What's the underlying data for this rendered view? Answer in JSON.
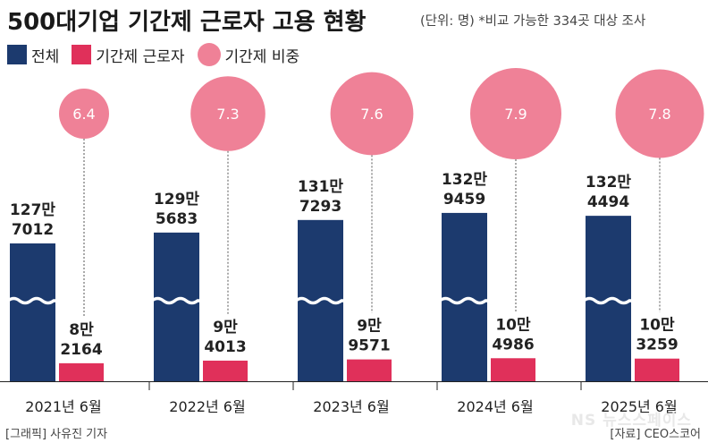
{
  "header": {
    "title": "500대기업 기간제 근로자 고용 현황",
    "note": "(단위: 명) *비교 가능한 334곳 대상 조사"
  },
  "legend": {
    "total": "전체",
    "contract": "기간제 근로자",
    "ratio": "기간제 비중"
  },
  "colors": {
    "total": "#1c3a6e",
    "contract": "#e0305a",
    "ratio": "#ef8197"
  },
  "chart_data": {
    "type": "bar",
    "axis_break": true,
    "categories": [
      "2021년 6월",
      "2022년 6월",
      "2023년 6월",
      "2024년 6월",
      "2025년 6월"
    ],
    "series": [
      {
        "name": "전체",
        "values": [
          1277012,
          1295683,
          1317293,
          1329459,
          1324494
        ],
        "labels": [
          [
            "127만",
            "7012"
          ],
          [
            "129만",
            "5683"
          ],
          [
            "131만",
            "7293"
          ],
          [
            "132만",
            "9459"
          ],
          [
            "132만",
            "4494"
          ]
        ]
      },
      {
        "name": "기간제 근로자",
        "values": [
          82164,
          94013,
          99571,
          104986,
          103259
        ],
        "labels": [
          [
            "8만",
            "2164"
          ],
          [
            "9만",
            "4013"
          ],
          [
            "9만",
            "9571"
          ],
          [
            "10만",
            "4986"
          ],
          [
            "10만",
            "3259"
          ]
        ]
      },
      {
        "name": "기간제 비중",
        "values": [
          6.4,
          7.3,
          7.6,
          7.9,
          7.8
        ],
        "labels": [
          "6.4",
          "7.3",
          "7.6",
          "7.9",
          "7.8"
        ]
      }
    ]
  },
  "footer": {
    "credit": "[그래픽] 사유진 기자",
    "source": "[자료] CEO스코어",
    "watermark": "NS 뉴스스페이스"
  }
}
